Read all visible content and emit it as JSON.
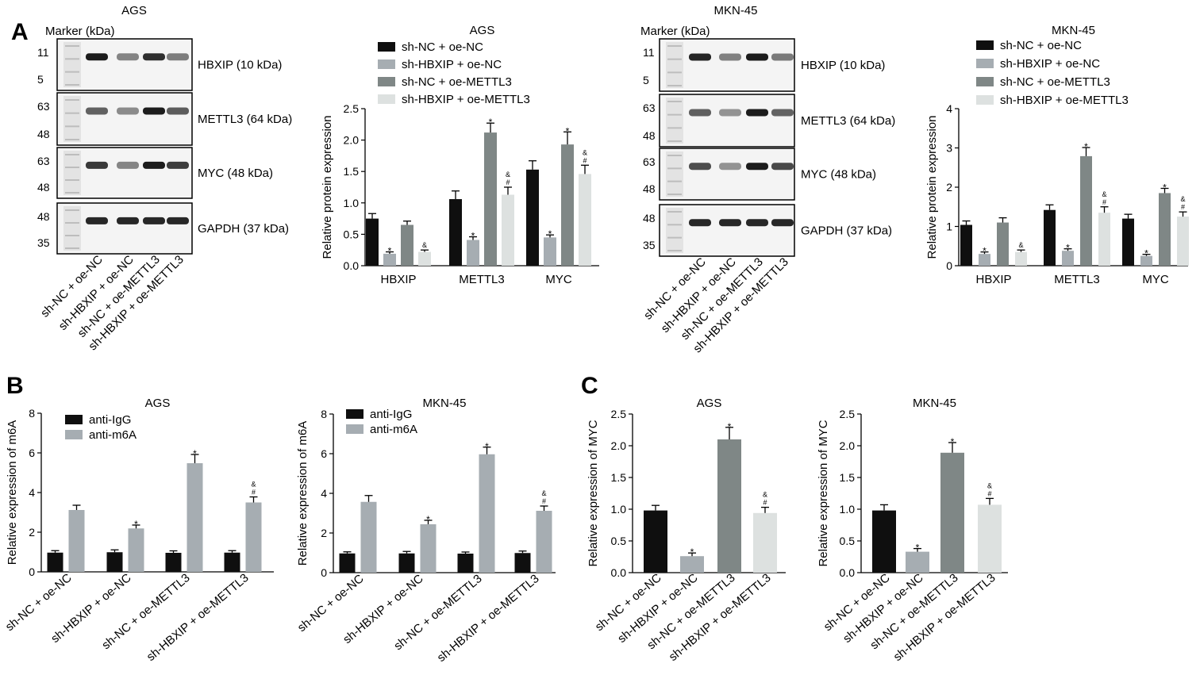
{
  "colors": {
    "s1": "#0f0f0f",
    "s2": "#a6adb2",
    "s3": "#7f8786",
    "s4": "#dde1e0"
  },
  "panel_labels": {
    "A": "A",
    "B": "B",
    "C": "C"
  },
  "blots": [
    {
      "cell_line": "AGS",
      "marker_title": "Marker (kDa)",
      "rows": [
        {
          "protein": "HBXIP (10 kDa)",
          "markers": [
            "11",
            "5"
          ]
        },
        {
          "protein": "METTL3 (64 kDa)",
          "markers": [
            "63",
            "48"
          ]
        },
        {
          "protein": "MYC (48 kDa)",
          "markers": [
            "63",
            "48"
          ]
        },
        {
          "protein": "GAPDH (37 kDa)",
          "markers": [
            "48",
            "35"
          ]
        }
      ],
      "lane_labels": [
        "sh-NC + oe-NC",
        "sh-HBXIP + oe-NC",
        "sh-NC + oe-METTL3",
        "sh-HBXIP + oe-METTL3"
      ]
    },
    {
      "cell_line": "MKN-45",
      "marker_title": "Marker (kDa)",
      "rows": [
        {
          "protein": "HBXIP (10 kDa)",
          "markers": [
            "11",
            "5"
          ]
        },
        {
          "protein": "METTL3 (64 kDa)",
          "markers": [
            "63",
            "48"
          ]
        },
        {
          "protein": "MYC (48 kDa)",
          "markers": [
            "63",
            "48"
          ]
        },
        {
          "protein": "GAPDH (37 kDa)",
          "markers": [
            "48",
            "35"
          ]
        }
      ],
      "lane_labels": [
        "sh-NC + oe-NC",
        "sh-HBXIP + oe-NC",
        "sh-NC + oe-METTL3",
        "sh-HBXIP + oe-METTL3"
      ]
    }
  ],
  "chart_data": [
    {
      "id": "A-AGS",
      "type": "bar",
      "title": "AGS",
      "ylabel": "Relative protein expression",
      "ylim": [
        0,
        2.5
      ],
      "yticks": [
        "0.0",
        "0.5",
        "1.0",
        "1.5",
        "2.0",
        "2.5"
      ],
      "categories": [
        "HBXIP",
        "METTL3",
        "MYC"
      ],
      "legend_position": "top",
      "series": [
        {
          "name": "sh-NC + oe-NC",
          "values": [
            0.75,
            1.06,
            1.53
          ],
          "errors": [
            0.08,
            0.13,
            0.14
          ],
          "marks": [
            "",
            "",
            ""
          ]
        },
        {
          "name": "sh-HBXIP + oe-NC",
          "values": [
            0.19,
            0.41,
            0.45
          ],
          "errors": [
            0.03,
            0.05,
            0.04
          ],
          "marks": [
            "*",
            "*",
            "*"
          ]
        },
        {
          "name": "sh-NC + oe-METTL3",
          "values": [
            0.65,
            2.12,
            1.93
          ],
          "errors": [
            0.06,
            0.15,
            0.2
          ],
          "marks": [
            "",
            "*",
            "*"
          ]
        },
        {
          "name": "sh-HBXIP + oe-METTL3",
          "values": [
            0.22,
            1.13,
            1.46
          ],
          "errors": [
            0.03,
            0.12,
            0.14
          ],
          "marks": [
            "&",
            "& # ",
            "& #"
          ]
        }
      ]
    },
    {
      "id": "A-MKN45",
      "type": "bar",
      "title": "MKN-45",
      "ylabel": "Relative protein expression",
      "ylim": [
        0,
        4
      ],
      "yticks": [
        "0",
        "1",
        "2",
        "3",
        "4"
      ],
      "categories": [
        "HBXIP",
        "METTL3",
        "MYC"
      ],
      "legend_position": "top",
      "series": [
        {
          "name": "sh-NC + oe-NC",
          "values": [
            1.04,
            1.42,
            1.2
          ],
          "errors": [
            0.1,
            0.13,
            0.11
          ],
          "marks": [
            "",
            "",
            ""
          ]
        },
        {
          "name": "sh-HBXIP + oe-NC",
          "values": [
            0.3,
            0.38,
            0.25
          ],
          "errors": [
            0.05,
            0.05,
            0.04
          ],
          "marks": [
            "*",
            "*",
            "*"
          ]
        },
        {
          "name": "sh-NC + oe-METTL3",
          "values": [
            1.1,
            2.79,
            1.85
          ],
          "errors": [
            0.12,
            0.22,
            0.12
          ],
          "marks": [
            "",
            "*",
            "*"
          ]
        },
        {
          "name": "sh-HBXIP + oe-METTL3",
          "values": [
            0.35,
            1.35,
            1.25
          ],
          "errors": [
            0.05,
            0.15,
            0.12
          ],
          "marks": [
            "&",
            "& #",
            "& #"
          ]
        }
      ]
    },
    {
      "id": "B-AGS",
      "type": "bar",
      "title": "AGS",
      "ylabel": "Relative expression of m6A",
      "ylim": [
        0,
        8
      ],
      "yticks": [
        "0",
        "2",
        "4",
        "6",
        "8"
      ],
      "categories": [
        "sh-NC + oe-NC",
        "sh-HBXIP + oe-NC",
        "sh-NC + oe-METTL3",
        "sh-HBXIP + oe-METTL3"
      ],
      "legend_position": "top-left",
      "series": [
        {
          "name": "anti-IgG",
          "values": [
            0.97,
            0.99,
            0.96,
            0.97
          ],
          "errors": [
            0.1,
            0.12,
            0.1,
            0.1
          ],
          "marks": [
            "",
            "",
            "",
            ""
          ]
        },
        {
          "name": "anti-m6A",
          "values": [
            3.12,
            2.19,
            5.48,
            3.5
          ],
          "errors": [
            0.24,
            0.17,
            0.44,
            0.28
          ],
          "marks": [
            "",
            "*",
            "*",
            "& #"
          ]
        }
      ]
    },
    {
      "id": "B-MKN45",
      "type": "bar",
      "title": "MKN-45",
      "ylabel": "Relative expression of m6A",
      "ylim": [
        0,
        8
      ],
      "yticks": [
        "0",
        "2",
        "4",
        "6",
        "8"
      ],
      "categories": [
        "sh-NC + oe-NC",
        "sh-HBXIP + oe-NC",
        "sh-NC + oe-METTL3",
        "sh-HBXIP + oe-METTL3"
      ],
      "legend_position": "top-left",
      "series": [
        {
          "name": "anti-IgG",
          "values": [
            0.97,
            0.97,
            0.96,
            0.99
          ],
          "errors": [
            0.08,
            0.1,
            0.08,
            0.1
          ],
          "marks": [
            "",
            "",
            "",
            ""
          ]
        },
        {
          "name": "anti-m6A",
          "values": [
            3.57,
            2.44,
            5.97,
            3.12
          ],
          "errors": [
            0.32,
            0.2,
            0.36,
            0.24
          ],
          "marks": [
            "",
            "*",
            "*",
            "& #"
          ]
        }
      ]
    },
    {
      "id": "C-AGS",
      "type": "bar",
      "title": "AGS",
      "ylabel": "Relative expression of MYC",
      "ylim": [
        0,
        2.5
      ],
      "yticks": [
        "0.0",
        "0.5",
        "1.0",
        "1.5",
        "2.0",
        "2.5"
      ],
      "categories": [
        "sh-NC + oe-NC",
        "sh-HBXIP + oe-NC",
        "sh-NC + oe-METTL3",
        "sh-HBXIP + oe-METTL3"
      ],
      "series": [
        {
          "values": [
            0.98,
            0.26,
            2.1,
            0.94
          ],
          "errors": [
            0.08,
            0.05,
            0.19,
            0.09
          ],
          "colors": [
            "s1",
            "s2",
            "s3",
            "s4"
          ],
          "marks": [
            "",
            "*",
            "*",
            "& #"
          ]
        }
      ]
    },
    {
      "id": "C-MKN45",
      "type": "bar",
      "title": "MKN-45",
      "ylabel": "Relative expression of MYC",
      "ylim": [
        0,
        2.5
      ],
      "yticks": [
        "0.0",
        "0.5",
        "1.0",
        "1.5",
        "2.0",
        "2.5"
      ],
      "categories": [
        "sh-NC + oe-NC",
        "sh-HBXIP + oe-NC",
        "sh-NC + oe-METTL3",
        "sh-HBXIP + oe-METTL3"
      ],
      "series": [
        {
          "values": [
            0.98,
            0.33,
            1.89,
            1.07
          ],
          "errors": [
            0.09,
            0.05,
            0.16,
            0.1
          ],
          "colors": [
            "s1",
            "s2",
            "s3",
            "s4"
          ],
          "marks": [
            "",
            "*",
            "*",
            "& #"
          ]
        }
      ]
    }
  ]
}
